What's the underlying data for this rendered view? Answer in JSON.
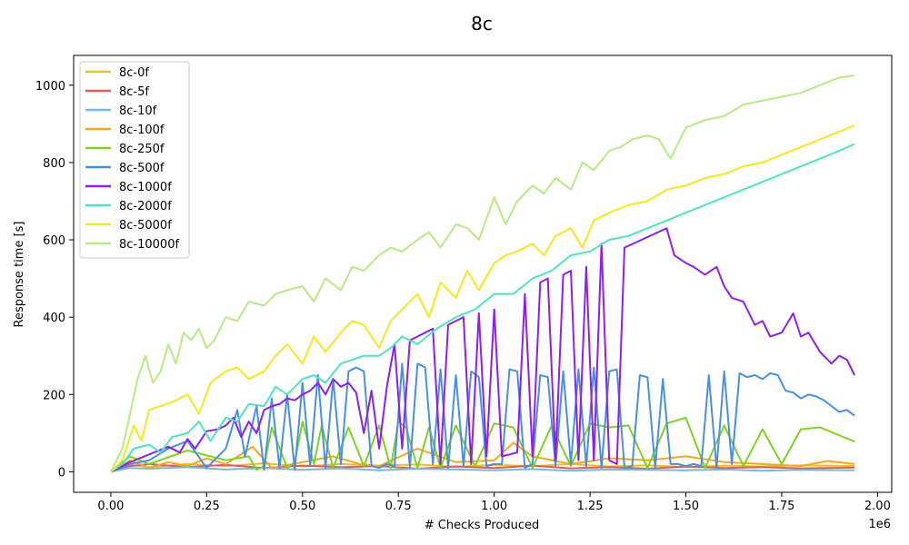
{
  "chart_data": {
    "type": "line",
    "title": "8c",
    "xlabel": "# Checks Produced",
    "ylabel": "Response time [s]",
    "x_offset_label": "1e6",
    "xlim": [
      -0.097,
      2.037
    ],
    "ylim": [
      -53,
      1077
    ],
    "x_ticks": [
      0.0,
      0.25,
      0.5,
      0.75,
      1.0,
      1.25,
      1.5,
      1.75,
      2.0
    ],
    "x_tick_labels": [
      "0.00",
      "0.25",
      "0.50",
      "0.75",
      "1.00",
      "1.25",
      "1.50",
      "1.75",
      "2.00"
    ],
    "y_ticks": [
      0,
      200,
      400,
      600,
      800,
      1000
    ],
    "y_tick_labels": [
      "0",
      "200",
      "400",
      "600",
      "800",
      "1000"
    ],
    "grid": false,
    "legend_position": "upper-left",
    "series": [
      {
        "name": "8c-0f",
        "color": "#e6c229",
        "x": [
          0,
          0.05,
          0.1,
          0.2,
          0.3,
          0.4,
          0.5,
          0.6,
          0.7,
          0.8,
          0.9,
          1.0,
          1.1,
          1.2,
          1.3,
          1.4,
          1.5,
          1.6,
          1.7,
          1.8,
          1.94
        ],
        "y": [
          0,
          18,
          12,
          20,
          15,
          22,
          14,
          20,
          16,
          19,
          13,
          18,
          15,
          20,
          14,
          17,
          12,
          16,
          14,
          17,
          15
        ]
      },
      {
        "name": "8c-5f",
        "color": "#d9605a",
        "x": [
          0,
          0.05,
          0.1,
          0.2,
          0.3,
          0.4,
          0.5,
          0.6,
          0.7,
          0.8,
          0.9,
          1.0,
          1.1,
          1.2,
          1.3,
          1.4,
          1.5,
          1.6,
          1.7,
          1.8,
          1.94
        ],
        "y": [
          0,
          15,
          20,
          12,
          18,
          10,
          16,
          12,
          15,
          8,
          14,
          10,
          16,
          9,
          12,
          8,
          14,
          10,
          12,
          9,
          11
        ]
      },
      {
        "name": "8c-10f",
        "color": "#7fb6d8",
        "x": [
          0,
          0.05,
          0.1,
          0.2,
          0.3,
          0.4,
          0.5,
          0.6,
          0.7,
          0.8,
          0.9,
          1.0,
          1.1,
          1.2,
          1.3,
          1.4,
          1.5,
          1.6,
          1.7,
          1.8,
          1.94
        ],
        "y": [
          0,
          10,
          8,
          12,
          6,
          10,
          5,
          9,
          4,
          8,
          6,
          4,
          7,
          3,
          6,
          5,
          4,
          6,
          3,
          5,
          4
        ]
      },
      {
        "name": "8c-100f",
        "color": "#f5a623",
        "x": [
          0,
          0.05,
          0.1,
          0.15,
          0.2,
          0.25,
          0.3,
          0.37,
          0.42,
          0.5,
          0.58,
          0.65,
          0.7,
          0.8,
          0.9,
          1.0,
          1.05,
          1.1,
          1.2,
          1.3,
          1.4,
          1.5,
          1.6,
          1.7,
          1.8,
          1.87,
          1.94
        ],
        "y": [
          0,
          30,
          10,
          25,
          15,
          35,
          20,
          65,
          10,
          25,
          40,
          20,
          15,
          60,
          25,
          30,
          75,
          40,
          20,
          35,
          30,
          40,
          25,
          20,
          15,
          28,
          20
        ]
      },
      {
        "name": "8c-250f",
        "color": "#7ed321",
        "x": [
          0,
          0.05,
          0.1,
          0.2,
          0.3,
          0.36,
          0.38,
          0.4,
          0.42,
          0.46,
          0.48,
          0.5,
          0.53,
          0.55,
          0.58,
          0.62,
          0.66,
          0.7,
          0.73,
          0.75,
          0.77,
          0.8,
          0.83,
          0.86,
          0.9,
          0.95,
          1.0,
          1.05,
          1.1,
          1.15,
          1.2,
          1.25,
          1.3,
          1.35,
          1.4,
          1.45,
          1.5,
          1.55,
          1.6,
          1.65,
          1.7,
          1.75,
          1.8,
          1.85,
          1.94
        ],
        "y": [
          0,
          40,
          20,
          55,
          30,
          40,
          5,
          15,
          115,
          10,
          25,
          130,
          20,
          120,
          10,
          115,
          15,
          120,
          10,
          130,
          115,
          10,
          115,
          10,
          120,
          15,
          125,
          115,
          10,
          120,
          15,
          125,
          115,
          120,
          10,
          125,
          140,
          10,
          120,
          15,
          110,
          20,
          110,
          115,
          78
        ]
      },
      {
        "name": "8c-500f",
        "color": "#4a90e2",
        "x": [
          0,
          0.05,
          0.1,
          0.15,
          0.2,
          0.25,
          0.3,
          0.33,
          0.35,
          0.38,
          0.4,
          0.42,
          0.44,
          0.46,
          0.48,
          0.5,
          0.52,
          0.54,
          0.56,
          0.58,
          0.6,
          0.62,
          0.64,
          0.66,
          0.68,
          0.7,
          0.72,
          0.74,
          0.76,
          0.78,
          0.8,
          0.82,
          0.84,
          0.86,
          0.88,
          0.9,
          0.92,
          0.94,
          0.96,
          0.98,
          1.0,
          1.02,
          1.04,
          1.06,
          1.08,
          1.1,
          1.12,
          1.14,
          1.16,
          1.18,
          1.2,
          1.22,
          1.24,
          1.26,
          1.28,
          1.3,
          1.32,
          1.34,
          1.36,
          1.38,
          1.4,
          1.42,
          1.44,
          1.46,
          1.48,
          1.5,
          1.52,
          1.54,
          1.56,
          1.58,
          1.6,
          1.62,
          1.64,
          1.66,
          1.68,
          1.7,
          1.72,
          1.74,
          1.76,
          1.78,
          1.8,
          1.82,
          1.84,
          1.86,
          1.88,
          1.9,
          1.92,
          1.94
        ],
        "y": [
          0,
          20,
          30,
          60,
          80,
          10,
          60,
          160,
          40,
          170,
          5,
          190,
          10,
          200,
          5,
          230,
          15,
          250,
          10,
          240,
          20,
          260,
          270,
          260,
          15,
          10,
          20,
          15,
          280,
          10,
          280,
          270,
          20,
          265,
          10,
          250,
          15,
          260,
          245,
          15,
          20,
          20,
          265,
          260,
          10,
          20,
          250,
          245,
          15,
          260,
          20,
          265,
          15,
          270,
          10,
          260,
          265,
          10,
          15,
          250,
          245,
          10,
          240,
          20,
          20,
          15,
          20,
          15,
          250,
          10,
          260,
          20,
          255,
          245,
          250,
          240,
          255,
          250,
          210,
          205,
          190,
          200,
          195,
          185,
          170,
          155,
          160,
          145
        ]
      },
      {
        "name": "8c-1000f",
        "color": "#8e1ff0",
        "x": [
          0,
          0.05,
          0.1,
          0.15,
          0.18,
          0.2,
          0.22,
          0.25,
          0.28,
          0.3,
          0.32,
          0.34,
          0.36,
          0.38,
          0.4,
          0.42,
          0.44,
          0.46,
          0.48,
          0.5,
          0.52,
          0.54,
          0.56,
          0.58,
          0.6,
          0.62,
          0.64,
          0.66,
          0.68,
          0.7,
          0.72,
          0.74,
          0.76,
          0.78,
          0.8,
          0.82,
          0.84,
          0.86,
          0.88,
          0.9,
          0.92,
          0.94,
          0.96,
          0.98,
          1.0,
          1.02,
          1.04,
          1.06,
          1.08,
          1.1,
          1.12,
          1.14,
          1.16,
          1.18,
          1.2,
          1.22,
          1.24,
          1.26,
          1.28,
          1.3,
          1.32,
          1.34,
          1.45,
          1.47,
          1.5,
          1.52,
          1.55,
          1.58,
          1.6,
          1.62,
          1.65,
          1.68,
          1.7,
          1.72,
          1.75,
          1.78,
          1.8,
          1.82,
          1.85,
          1.88,
          1.9,
          1.92,
          1.94
        ],
        "y": [
          0,
          25,
          45,
          65,
          50,
          85,
          60,
          105,
          110,
          120,
          140,
          90,
          130,
          100,
          160,
          170,
          175,
          190,
          185,
          200,
          210,
          230,
          200,
          240,
          220,
          230,
          205,
          100,
          210,
          60,
          220,
          330,
          60,
          340,
          350,
          360,
          370,
          20,
          380,
          390,
          400,
          20,
          410,
          40,
          420,
          40,
          45,
          50,
          460,
          40,
          490,
          500,
          30,
          510,
          520,
          30,
          530,
          30,
          590,
          30,
          20,
          580,
          630,
          560,
          540,
          530,
          510,
          530,
          480,
          450,
          440,
          380,
          390,
          350,
          360,
          410,
          350,
          360,
          310,
          280,
          300,
          290,
          250
        ]
      },
      {
        "name": "8c-2000f",
        "color": "#50e3c2",
        "x": [
          0,
          0.03,
          0.06,
          0.1,
          0.13,
          0.16,
          0.2,
          0.23,
          0.26,
          0.3,
          0.33,
          0.36,
          0.4,
          0.43,
          0.46,
          0.5,
          0.53,
          0.56,
          0.6,
          0.63,
          0.66,
          0.7,
          0.73,
          0.76,
          0.8,
          0.85,
          0.9,
          0.95,
          1.0,
          1.05,
          1.1,
          1.15,
          1.2,
          1.25,
          1.3,
          1.35,
          1.4,
          1.45,
          1.5,
          1.55,
          1.6,
          1.65,
          1.7,
          1.75,
          1.8,
          1.85,
          1.9,
          1.94
        ],
        "y": [
          0,
          20,
          60,
          70,
          50,
          90,
          100,
          130,
          80,
          140,
          130,
          175,
          170,
          220,
          200,
          240,
          250,
          230,
          280,
          290,
          300,
          300,
          320,
          350,
          330,
          370,
          400,
          420,
          460,
          460,
          500,
          520,
          560,
          570,
          600,
          610,
          630,
          650,
          670,
          690,
          710,
          730,
          750,
          770,
          790,
          810,
          830,
          848
        ]
      },
      {
        "name": "8c-5000f",
        "color": "#f8e71c",
        "x": [
          0,
          0.03,
          0.06,
          0.08,
          0.1,
          0.13,
          0.16,
          0.2,
          0.23,
          0.26,
          0.3,
          0.33,
          0.36,
          0.4,
          0.43,
          0.46,
          0.5,
          0.53,
          0.56,
          0.6,
          0.63,
          0.66,
          0.7,
          0.73,
          0.76,
          0.8,
          0.83,
          0.86,
          0.9,
          0.93,
          0.96,
          1.0,
          1.03,
          1.06,
          1.1,
          1.13,
          1.16,
          1.2,
          1.23,
          1.26,
          1.3,
          1.35,
          1.4,
          1.45,
          1.5,
          1.55,
          1.6,
          1.65,
          1.7,
          1.75,
          1.8,
          1.85,
          1.9,
          1.94
        ],
        "y": [
          0,
          30,
          120,
          80,
          160,
          170,
          180,
          200,
          150,
          230,
          260,
          270,
          240,
          260,
          300,
          330,
          280,
          350,
          310,
          360,
          390,
          380,
          320,
          390,
          420,
          460,
          400,
          490,
          450,
          520,
          470,
          540,
          560,
          570,
          590,
          560,
          610,
          630,
          580,
          650,
          670,
          690,
          700,
          730,
          740,
          760,
          770,
          790,
          800,
          820,
          840,
          860,
          880,
          896
        ]
      },
      {
        "name": "8c-10000f",
        "color": "#b8e986",
        "x": [
          0,
          0.03,
          0.05,
          0.07,
          0.09,
          0.11,
          0.13,
          0.15,
          0.17,
          0.19,
          0.21,
          0.23,
          0.25,
          0.27,
          0.3,
          0.33,
          0.36,
          0.4,
          0.43,
          0.46,
          0.5,
          0.53,
          0.56,
          0.6,
          0.63,
          0.66,
          0.7,
          0.73,
          0.76,
          0.8,
          0.83,
          0.86,
          0.9,
          0.93,
          0.96,
          1.0,
          1.03,
          1.06,
          1.1,
          1.13,
          1.16,
          1.2,
          1.23,
          1.26,
          1.3,
          1.33,
          1.36,
          1.4,
          1.43,
          1.46,
          1.5,
          1.55,
          1.6,
          1.65,
          1.7,
          1.75,
          1.8,
          1.85,
          1.9,
          1.94
        ],
        "y": [
          0,
          60,
          150,
          240,
          300,
          230,
          260,
          330,
          280,
          360,
          340,
          370,
          320,
          340,
          400,
          390,
          440,
          430,
          460,
          470,
          480,
          440,
          500,
          470,
          530,
          520,
          560,
          580,
          570,
          600,
          620,
          580,
          640,
          630,
          600,
          710,
          640,
          700,
          740,
          720,
          760,
          730,
          800,
          780,
          830,
          840,
          860,
          870,
          860,
          810,
          890,
          910,
          920,
          950,
          960,
          970,
          980,
          1000,
          1020,
          1025
        ]
      }
    ]
  }
}
